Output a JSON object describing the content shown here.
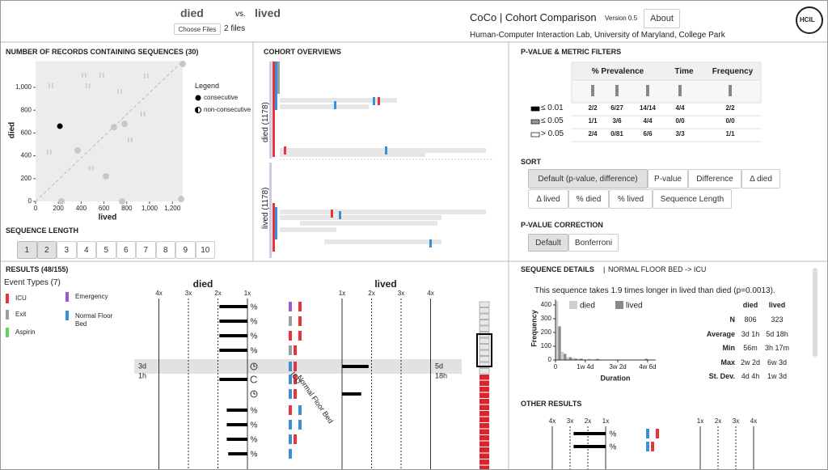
{
  "header": {
    "cohort_a": "died",
    "vs": "vs.",
    "cohort_b": "lived",
    "choose_files": "Choose Files",
    "files": "2 files",
    "app_title": "CoCo | Cohort Comparison",
    "version": "Version 0.5",
    "about": "About",
    "affiliation": "Human-Computer Interaction Lab, University of Maryland, College Park",
    "logo": "HCIL"
  },
  "records_panel": {
    "title": "NUMBER OF RECORDS CONTAINING SEQUENCES (30)",
    "legend_title": "Legend",
    "legend": [
      "consecutive",
      "non-consecutive"
    ],
    "chart_data": {
      "type": "scatter",
      "xlabel": "lived",
      "ylabel": "died",
      "xlim": [
        0,
        1290
      ],
      "ylim": [
        0,
        1230
      ],
      "xticks": [
        0,
        200,
        400,
        600,
        800,
        {
          "value": 1000,
          "label": "1,000"
        },
        {
          "value": 1200,
          "label": "1,200"
        }
      ],
      "yticks": [
        0,
        200,
        400,
        600,
        800,
        {
          "value": 1000,
          "label": "1,000"
        }
      ],
      "points": [
        {
          "x": 213,
          "y": 660,
          "kind": "consecutive",
          "filtered": false
        },
        {
          "x": 1290,
          "y": 1206,
          "kind": "consecutive",
          "filtered": true
        },
        {
          "x": 780,
          "y": 680,
          "kind": "consecutive",
          "filtered": true
        },
        {
          "x": 688,
          "y": 652,
          "kind": "consecutive",
          "filtered": true
        },
        {
          "x": 369,
          "y": 447,
          "kind": "consecutive",
          "filtered": true
        },
        {
          "x": 617,
          "y": 220,
          "kind": "consecutive",
          "filtered": true
        },
        {
          "x": 227,
          "y": 0,
          "kind": "consecutive",
          "filtered": true
        },
        {
          "x": 759,
          "y": 0,
          "kind": "consecutive",
          "filtered": true
        },
        {
          "x": 1277,
          "y": 21,
          "kind": "consecutive",
          "filtered": true
        },
        {
          "x": 426,
          "y": 1106,
          "kind": "non-consecutive",
          "filtered": true
        },
        {
          "x": 582,
          "y": 1106,
          "kind": "non-consecutive",
          "filtered": true
        },
        {
          "x": 972,
          "y": 1099,
          "kind": "non-consecutive",
          "filtered": true
        },
        {
          "x": 135,
          "y": 1014,
          "kind": "non-consecutive",
          "filtered": true
        },
        {
          "x": 461,
          "y": 1014,
          "kind": "non-consecutive",
          "filtered": true
        },
        {
          "x": 738,
          "y": 964,
          "kind": "non-consecutive",
          "filtered": true
        },
        {
          "x": 943,
          "y": 766,
          "kind": "non-consecutive",
          "filtered": true
        },
        {
          "x": 830,
          "y": 539,
          "kind": "non-consecutive",
          "filtered": true
        },
        {
          "x": 489,
          "y": 291,
          "kind": "non-consecutive",
          "filtered": true
        },
        {
          "x": 121,
          "y": 433,
          "kind": "non-consecutive",
          "filtered": true
        }
      ]
    }
  },
  "sequence_length": {
    "title": "SEQUENCE LENGTH",
    "options": [
      "1",
      "2",
      "3",
      "4",
      "5",
      "6",
      "7",
      "8",
      "9",
      "10"
    ],
    "selected": [
      0,
      1
    ]
  },
  "cohort_overviews": {
    "title": "COHORT OVERVIEWS",
    "cohort_a": "died (1178)",
    "cohort_b": "lived (1178)"
  },
  "filters": {
    "title": "P-VALUE & METRIC FILTERS",
    "headers": [
      "% Prevalence",
      "Time",
      "Frequency"
    ],
    "rows": [
      {
        "label": "≤ 0.01",
        "cells": [
          "2/2",
          "6/27",
          "14/14",
          "4/4",
          "2/2"
        ]
      },
      {
        "label": "≤ 0.05",
        "cells": [
          "1/1",
          "3/6",
          "4/4",
          "0/0",
          "0/0"
        ]
      },
      {
        "label": "> 0.05",
        "cells": [
          "2/4",
          "0/81",
          "6/6",
          "3/3",
          "1/1"
        ]
      }
    ]
  },
  "sort": {
    "title": "SORT",
    "options": [
      "Default (p-value, difference)",
      "P-value",
      "Difference",
      "Δ died",
      "Δ lived",
      "% died",
      "% lived",
      "Sequence Length"
    ],
    "selected": 0
  },
  "correction": {
    "title": "P-VALUE CORRECTION",
    "options": [
      "Default",
      "Bonferroni"
    ],
    "selected": 0
  },
  "results": {
    "title": "RESULTS (48/155)",
    "event_types_title": "Event Types (7)",
    "event_types": [
      {
        "label": "ICU",
        "color": "#e8323c"
      },
      {
        "label": "Emergency",
        "color": "#9b59d0"
      },
      {
        "label": "Exit",
        "color": "#9e9e9e"
      },
      {
        "label": "Normal Floor Bed",
        "color": "#3a8fd9"
      },
      {
        "label": "Aspirin",
        "color": "#5cd65c"
      }
    ],
    "sequence_labels": [
      "ICU",
      "Normal Floor Bed"
    ],
    "chart_data": {
      "type": "diverging-bar",
      "cohort_a": "died",
      "cohort_b": "lived",
      "xlim": [
        1,
        4
      ],
      "xticks": [
        {
          "value": 1,
          "label": "1x"
        },
        {
          "value": 2,
          "label": "2x"
        },
        {
          "value": 3,
          "label": "3x"
        },
        {
          "value": 4,
          "label": "4x"
        }
      ],
      "rows": [
        {
          "metric": "%",
          "died": 1.95,
          "lived": null
        },
        {
          "metric": "%",
          "died": 1.95,
          "lived": null
        },
        {
          "metric": "%",
          "died": 1.95,
          "lived": null
        },
        {
          "metric": "%",
          "died": 1.95,
          "lived": null
        },
        {
          "icon": "time",
          "died": null,
          "lived": 1.9,
          "died_time": [
            "3d",
            "1h"
          ],
          "lived_time": [
            "5d",
            "18h"
          ]
        },
        {
          "icon": "frequency",
          "died": 1.95,
          "lived": null
        },
        {
          "icon": "time",
          "died": null,
          "lived": 1.65
        },
        {
          "metric": "%",
          "died": 1.7,
          "lived": null
        },
        {
          "metric": "%",
          "died": 1.7,
          "lived": null
        },
        {
          "metric": "%",
          "died": 1.7,
          "lived": null
        },
        {
          "metric": "%",
          "died": 1.65,
          "lived": null
        }
      ]
    }
  },
  "details": {
    "title": "SEQUENCE DETAILS",
    "separator": "|",
    "sequence": "NORMAL FLOOR BED -> ICU",
    "summary": "This sequence takes 1.9 times longer in lived than died (p=0.0013).",
    "chart_data": {
      "type": "histogram",
      "xlabel": "Duration",
      "ylabel": "Frequency",
      "bins": [
        0,
        2,
        4,
        6,
        8,
        10,
        12,
        14,
        16,
        18,
        20,
        22,
        24,
        26,
        28,
        30,
        32,
        34,
        36
      ],
      "xlim": [
        0,
        37
      ],
      "ylim": [
        0,
        440
      ],
      "xticks": [
        0,
        {
          "value": 11,
          "label": "1w 4d"
        },
        {
          "value": 23,
          "label": "3w 2d"
        },
        {
          "value": 34,
          "label": "4w 6d"
        }
      ],
      "yticks": [
        0,
        100,
        200,
        300,
        400
      ],
      "series": [
        {
          "name": "died",
          "color": "#cfcfcf",
          "values": [
            430,
            60,
            20,
            15,
            8,
            5,
            10,
            6,
            3,
            4,
            2,
            0,
            0,
            0,
            0,
            0,
            0,
            0
          ]
        },
        {
          "name": "lived",
          "color": "#8a8a8a",
          "values": [
            245,
            45,
            20,
            10,
            10,
            0,
            0,
            8,
            0,
            0,
            0,
            0,
            0,
            0,
            0,
            0,
            10,
            0
          ]
        }
      ]
    },
    "stats": {
      "headers": [
        "died",
        "lived"
      ],
      "rows": [
        [
          "N",
          "806",
          "323"
        ],
        [
          "Average",
          "3d 1h",
          "5d 18h"
        ],
        [
          "Min",
          "56m",
          "3h 17m"
        ],
        [
          "Max",
          "2w 2d",
          "6w 3d"
        ],
        [
          "St. Dev.",
          "4d 4h",
          "1w 3d"
        ]
      ]
    }
  },
  "other_results": {
    "title": "OTHER RESULTS",
    "chart_data": {
      "type": "diverging-bar",
      "xlim": [
        1,
        4
      ],
      "xticks": [
        {
          "value": 1,
          "label": "1x"
        },
        {
          "value": 2,
          "label": "2x"
        },
        {
          "value": 3,
          "label": "3x"
        },
        {
          "value": 4,
          "label": "4x"
        }
      ],
      "rows": [
        {
          "metric": "%",
          "died": 2.8,
          "lived": null
        },
        {
          "metric": "%",
          "died": 2.8,
          "lived": null
        }
      ]
    }
  }
}
